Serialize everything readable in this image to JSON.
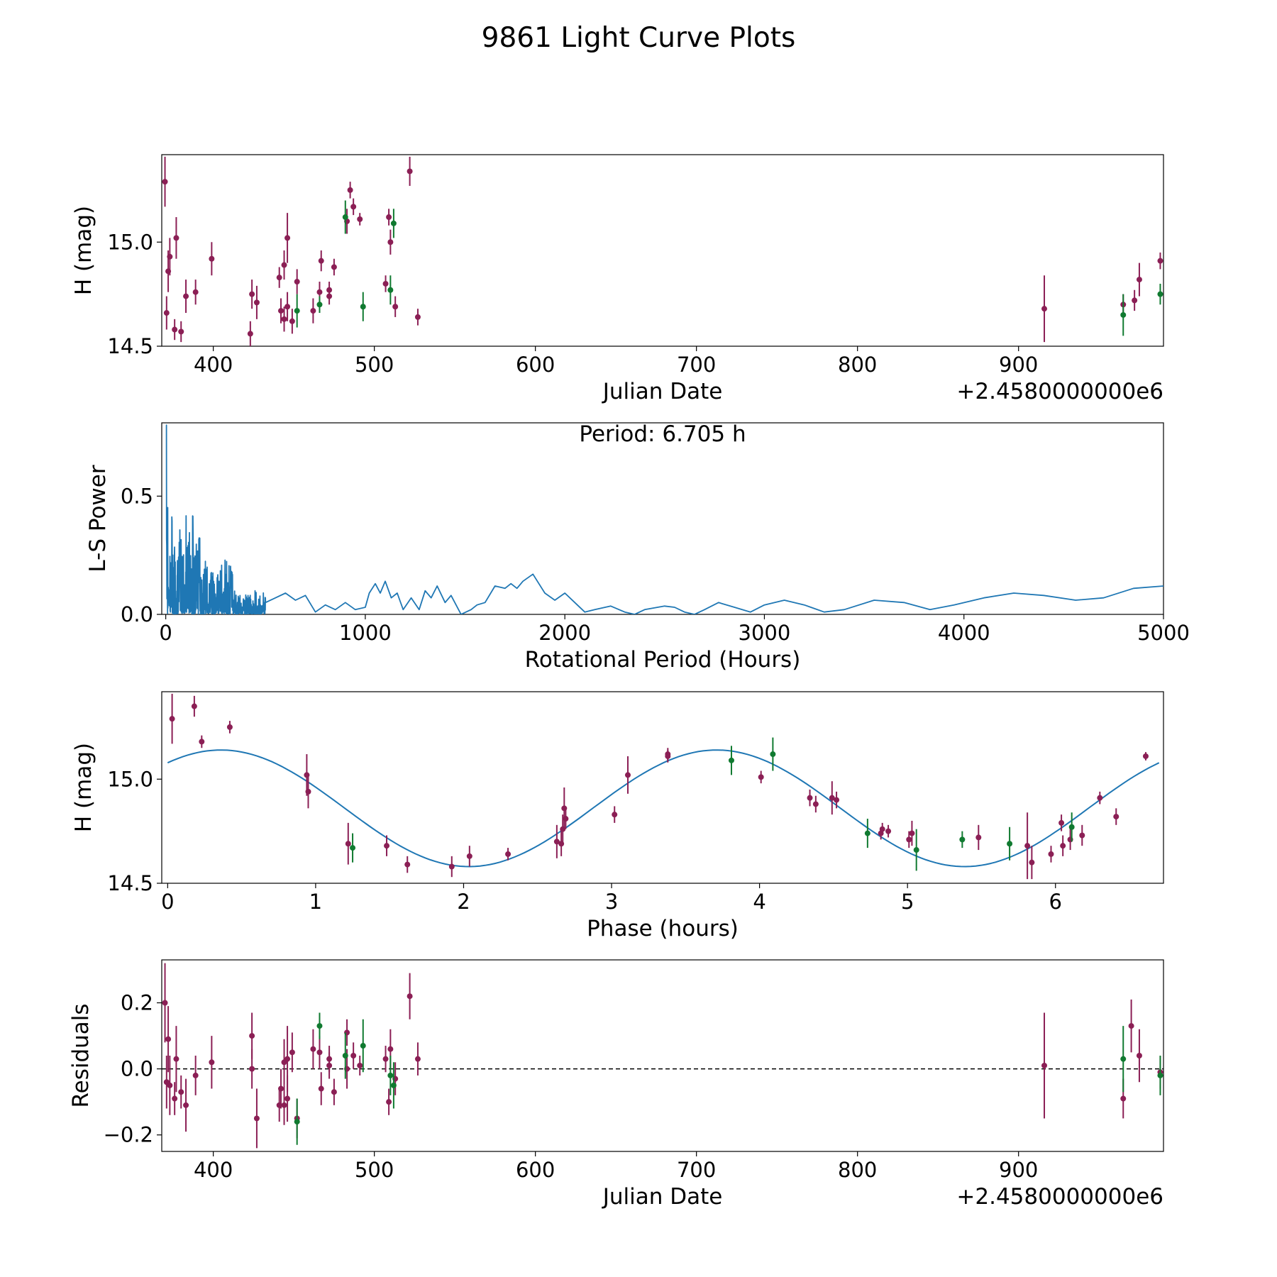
{
  "title": "9861 Light Curve Plots",
  "colors": {
    "tess": "#8b1f55",
    "ztf_g": "#107a30",
    "curve": "#1f77b4",
    "axis": "#000000"
  },
  "chart_data": [
    {
      "id": "lightcurve",
      "type": "scatter",
      "xlabel": "Julian Date",
      "ylabel": "H (mag)",
      "x_offset_label": "+2.4580000000e6",
      "xlim": [
        368,
        990
      ],
      "ylim": [
        14.5,
        15.42
      ],
      "xticks": [
        400,
        500,
        600,
        700,
        800,
        900
      ],
      "yticks": [
        15.0,
        14.5
      ],
      "ytick_labels": [
        "15.0",
        "14.5"
      ],
      "series": [
        {
          "name": "purple",
          "color": "#8b1f55",
          "points": [
            [
              370,
              15.29,
              0.12
            ],
            [
              371,
              14.66,
              0.08
            ],
            [
              372,
              14.86,
              0.1
            ],
            [
              373,
              14.93,
              0.09
            ],
            [
              376,
              14.58,
              0.05
            ],
            [
              377,
              15.02,
              0.1
            ],
            [
              380,
              14.57,
              0.05
            ],
            [
              383,
              14.74,
              0.08
            ],
            [
              389,
              14.76,
              0.06
            ],
            [
              399,
              14.92,
              0.08
            ],
            [
              423,
              14.56,
              0.06
            ],
            [
              424,
              14.75,
              0.07
            ],
            [
              427,
              14.71,
              0.08
            ],
            [
              441,
              14.83,
              0.05
            ],
            [
              442,
              14.67,
              0.06
            ],
            [
              444,
              14.63,
              0.06
            ],
            [
              444,
              14.89,
              0.07
            ],
            [
              446,
              15.02,
              0.12
            ],
            [
              446,
              14.69,
              0.07
            ],
            [
              449,
              14.62,
              0.06
            ],
            [
              452,
              14.81,
              0.06
            ],
            [
              462,
              14.67,
              0.06
            ],
            [
              466,
              14.76,
              0.05
            ],
            [
              467,
              14.91,
              0.05
            ],
            [
              472,
              14.77,
              0.04
            ],
            [
              472,
              14.74,
              0.04
            ],
            [
              475,
              14.88,
              0.04
            ],
            [
              483,
              15.1,
              0.06
            ],
            [
              485,
              15.25,
              0.04
            ],
            [
              487,
              15.17,
              0.04
            ],
            [
              491,
              15.11,
              0.03
            ],
            [
              507,
              14.8,
              0.04
            ],
            [
              509,
              15.12,
              0.04
            ],
            [
              510,
              15.0,
              0.06
            ],
            [
              513,
              14.69,
              0.05
            ],
            [
              522,
              15.34,
              0.07
            ],
            [
              527,
              14.64,
              0.04
            ],
            [
              916,
              14.68,
              0.16
            ],
            [
              965,
              14.7,
              0.05
            ],
            [
              972,
              14.72,
              0.05
            ],
            [
              975,
              14.82,
              0.08
            ],
            [
              988,
              14.91,
              0.04
            ]
          ]
        },
        {
          "name": "green",
          "color": "#107a30",
          "points": [
            [
              452,
              14.67,
              0.08
            ],
            [
              466,
              14.7,
              0.04
            ],
            [
              482,
              15.12,
              0.08
            ],
            [
              493,
              14.69,
              0.07
            ],
            [
              510,
              14.77,
              0.07
            ],
            [
              512,
              15.09,
              0.07
            ],
            [
              965,
              14.65,
              0.1
            ],
            [
              988,
              14.75,
              0.05
            ]
          ]
        }
      ]
    },
    {
      "id": "periodogram",
      "type": "line",
      "xlabel": "Rotational Period (Hours)",
      "ylabel": "L-S Power",
      "annotation": "Period: 6.705 h",
      "xlim": [
        -20,
        5000
      ],
      "ylim": [
        0,
        0.81
      ],
      "xticks": [
        0,
        1000,
        2000,
        3000,
        4000,
        5000
      ],
      "yticks": [
        0.0,
        0.5
      ],
      "ytick_labels": [
        "0.0",
        "0.5"
      ],
      "color": "#1f77b4",
      "series": [
        {
          "name": "smooth",
          "x": [
            500,
            550,
            600,
            650,
            700,
            750,
            800,
            850,
            900,
            950,
            1000,
            1020,
            1050,
            1075,
            1100,
            1130,
            1160,
            1190,
            1230,
            1270,
            1300,
            1330,
            1360,
            1400,
            1430,
            1480,
            1530,
            1560,
            1600,
            1650,
            1700,
            1730,
            1760,
            1790,
            1840,
            1870,
            1900,
            1950,
            2000,
            2050,
            2100,
            2150,
            2230,
            2300,
            2350,
            2400,
            2500,
            2550,
            2600,
            2650,
            2700,
            2770,
            2850,
            2930,
            3000,
            3100,
            3200,
            3300,
            3400,
            3550,
            3700,
            3830,
            3950,
            4100,
            4250,
            4400,
            4560,
            4700,
            4850,
            5000
          ],
          "y": [
            0.05,
            0.07,
            0.09,
            0.06,
            0.08,
            0.01,
            0.04,
            0.02,
            0.05,
            0.02,
            0.03,
            0.09,
            0.13,
            0.09,
            0.14,
            0.07,
            0.09,
            0.02,
            0.07,
            0.02,
            0.1,
            0.07,
            0.12,
            0.05,
            0.08,
            0.0,
            0.02,
            0.04,
            0.05,
            0.12,
            0.11,
            0.13,
            0.11,
            0.14,
            0.17,
            0.13,
            0.09,
            0.06,
            0.09,
            0.05,
            0.01,
            0.02,
            0.035,
            0.01,
            0.0,
            0.02,
            0.035,
            0.03,
            0.01,
            0.0,
            0.02,
            0.05,
            0.03,
            0.01,
            0.04,
            0.06,
            0.04,
            0.01,
            0.02,
            0.06,
            0.05,
            0.02,
            0.04,
            0.07,
            0.09,
            0.08,
            0.06,
            0.07,
            0.11,
            0.12
          ]
        }
      ]
    },
    {
      "id": "phase_fold",
      "type": "scatter",
      "xlabel": "Phase (hours)",
      "ylabel": "H (mag)",
      "xlim": [
        -0.04,
        6.73
      ],
      "ylim": [
        14.5,
        15.42
      ],
      "xticks": [
        0,
        1,
        2,
        3,
        4,
        5,
        6
      ],
      "yticks": [
        15.0,
        14.5
      ],
      "ytick_labels": [
        "15.0",
        "14.5"
      ],
      "fit": {
        "name": "sinusoid fit",
        "mean": 14.86,
        "amplitude": 0.28,
        "period": 3.35,
        "peak_phase": 0.36,
        "x_range": [
          0,
          6.7
        ],
        "color": "#1f77b4"
      },
      "series": [
        {
          "name": "purple",
          "color": "#8b1f55",
          "points": [
            [
              0.03,
              15.29,
              0.12
            ],
            [
              0.18,
              15.35,
              0.05
            ],
            [
              0.23,
              15.18,
              0.03
            ],
            [
              0.42,
              15.25,
              0.03
            ],
            [
              0.94,
              15.02,
              0.1
            ],
            [
              0.95,
              14.94,
              0.08
            ],
            [
              1.22,
              14.69,
              0.1
            ],
            [
              1.48,
              14.68,
              0.05
            ],
            [
              1.62,
              14.59,
              0.04
            ],
            [
              1.92,
              14.58,
              0.05
            ],
            [
              2.04,
              14.63,
              0.05
            ],
            [
              2.3,
              14.64,
              0.03
            ],
            [
              2.63,
              14.7,
              0.08
            ],
            [
              2.66,
              14.69,
              0.06
            ],
            [
              2.67,
              14.76,
              0.07
            ],
            [
              2.68,
              14.86,
              0.1
            ],
            [
              2.69,
              14.81,
              0.05
            ],
            [
              3.02,
              14.83,
              0.04
            ],
            [
              3.11,
              15.02,
              0.09
            ],
            [
              3.38,
              15.12,
              0.03
            ],
            [
              3.38,
              15.11,
              0.03
            ],
            [
              4.01,
              15.01,
              0.03
            ],
            [
              4.34,
              14.91,
              0.04
            ],
            [
              4.38,
              14.88,
              0.04
            ],
            [
              4.49,
              14.91,
              0.08
            ],
            [
              4.52,
              14.9,
              0.04
            ],
            [
              4.82,
              14.74,
              0.03
            ],
            [
              4.83,
              14.76,
              0.03
            ],
            [
              4.87,
              14.75,
              0.03
            ],
            [
              5.01,
              14.71,
              0.04
            ],
            [
              5.03,
              14.74,
              0.06
            ],
            [
              5.48,
              14.72,
              0.06
            ],
            [
              5.81,
              14.68,
              0.16
            ],
            [
              5.84,
              14.6,
              0.08
            ],
            [
              5.97,
              14.64,
              0.04
            ],
            [
              6.04,
              14.79,
              0.04
            ],
            [
              6.05,
              14.68,
              0.05
            ],
            [
              6.1,
              14.71,
              0.05
            ],
            [
              6.18,
              14.73,
              0.05
            ],
            [
              6.3,
              14.91,
              0.03
            ],
            [
              6.41,
              14.82,
              0.04
            ],
            [
              6.61,
              15.11,
              0.02
            ]
          ]
        },
        {
          "name": "green",
          "color": "#107a30",
          "points": [
            [
              1.25,
              14.67,
              0.07
            ],
            [
              3.81,
              15.09,
              0.07
            ],
            [
              4.09,
              15.12,
              0.08
            ],
            [
              4.73,
              14.74,
              0.07
            ],
            [
              5.06,
              14.66,
              0.1
            ],
            [
              5.37,
              14.71,
              0.04
            ],
            [
              5.69,
              14.69,
              0.08
            ],
            [
              6.11,
              14.77,
              0.07
            ]
          ]
        }
      ]
    },
    {
      "id": "residuals",
      "type": "scatter",
      "xlabel": "Julian Date",
      "ylabel": "Residuals",
      "x_offset_label": "+2.4580000000e6",
      "xlim": [
        368,
        990
      ],
      "ylim": [
        -0.25,
        0.33
      ],
      "xticks": [
        400,
        500,
        600,
        700,
        800,
        900
      ],
      "yticks": [
        0.2,
        0.0,
        -0.2
      ],
      "ytick_labels": [
        "0.2",
        "0.0",
        "−0.2"
      ],
      "reference_line": 0.0,
      "series": [
        {
          "name": "purple",
          "color": "#8b1f55",
          "points": [
            [
              370,
              0.2,
              0.12
            ],
            [
              371,
              -0.04,
              0.08
            ],
            [
              372,
              0.09,
              0.1
            ],
            [
              373,
              -0.05,
              0.09
            ],
            [
              376,
              -0.09,
              0.05
            ],
            [
              377,
              0.03,
              0.1
            ],
            [
              380,
              -0.07,
              0.05
            ],
            [
              383,
              -0.11,
              0.08
            ],
            [
              389,
              -0.02,
              0.06
            ],
            [
              399,
              0.02,
              0.08
            ],
            [
              424,
              0.0,
              0.06
            ],
            [
              424,
              0.1,
              0.07
            ],
            [
              427,
              -0.15,
              0.09
            ],
            [
              441,
              -0.11,
              0.05
            ],
            [
              442,
              -0.06,
              0.06
            ],
            [
              444,
              -0.11,
              0.06
            ],
            [
              444,
              0.02,
              0.07
            ],
            [
              446,
              0.03,
              0.1
            ],
            [
              446,
              -0.09,
              0.07
            ],
            [
              449,
              0.05,
              0.06
            ],
            [
              452,
              -0.15,
              0.06
            ],
            [
              462,
              0.06,
              0.06
            ],
            [
              466,
              0.05,
              0.05
            ],
            [
              467,
              -0.06,
              0.05
            ],
            [
              472,
              0.03,
              0.04
            ],
            [
              472,
              0.01,
              0.04
            ],
            [
              475,
              -0.07,
              0.04
            ],
            [
              483,
              0.0,
              0.06
            ],
            [
              483,
              0.11,
              0.04
            ],
            [
              487,
              0.04,
              0.04
            ],
            [
              491,
              0.01,
              0.03
            ],
            [
              507,
              0.03,
              0.04
            ],
            [
              509,
              -0.1,
              0.04
            ],
            [
              510,
              0.06,
              0.06
            ],
            [
              513,
              -0.03,
              0.05
            ],
            [
              522,
              0.22,
              0.07
            ],
            [
              527,
              0.03,
              0.05
            ],
            [
              916,
              0.01,
              0.16
            ],
            [
              965,
              -0.09,
              0.06
            ],
            [
              970,
              0.13,
              0.08
            ],
            [
              975,
              0.04,
              0.08
            ],
            [
              988,
              -0.01,
              0.05
            ]
          ]
        },
        {
          "name": "green",
          "color": "#107a30",
          "points": [
            [
              452,
              -0.16,
              0.07
            ],
            [
              466,
              0.13,
              0.04
            ],
            [
              482,
              0.04,
              0.07
            ],
            [
              493,
              0.07,
              0.08
            ],
            [
              510,
              -0.02,
              0.06
            ],
            [
              512,
              -0.05,
              0.07
            ],
            [
              965,
              0.03,
              0.1
            ],
            [
              988,
              -0.02,
              0.06
            ]
          ]
        }
      ]
    }
  ]
}
